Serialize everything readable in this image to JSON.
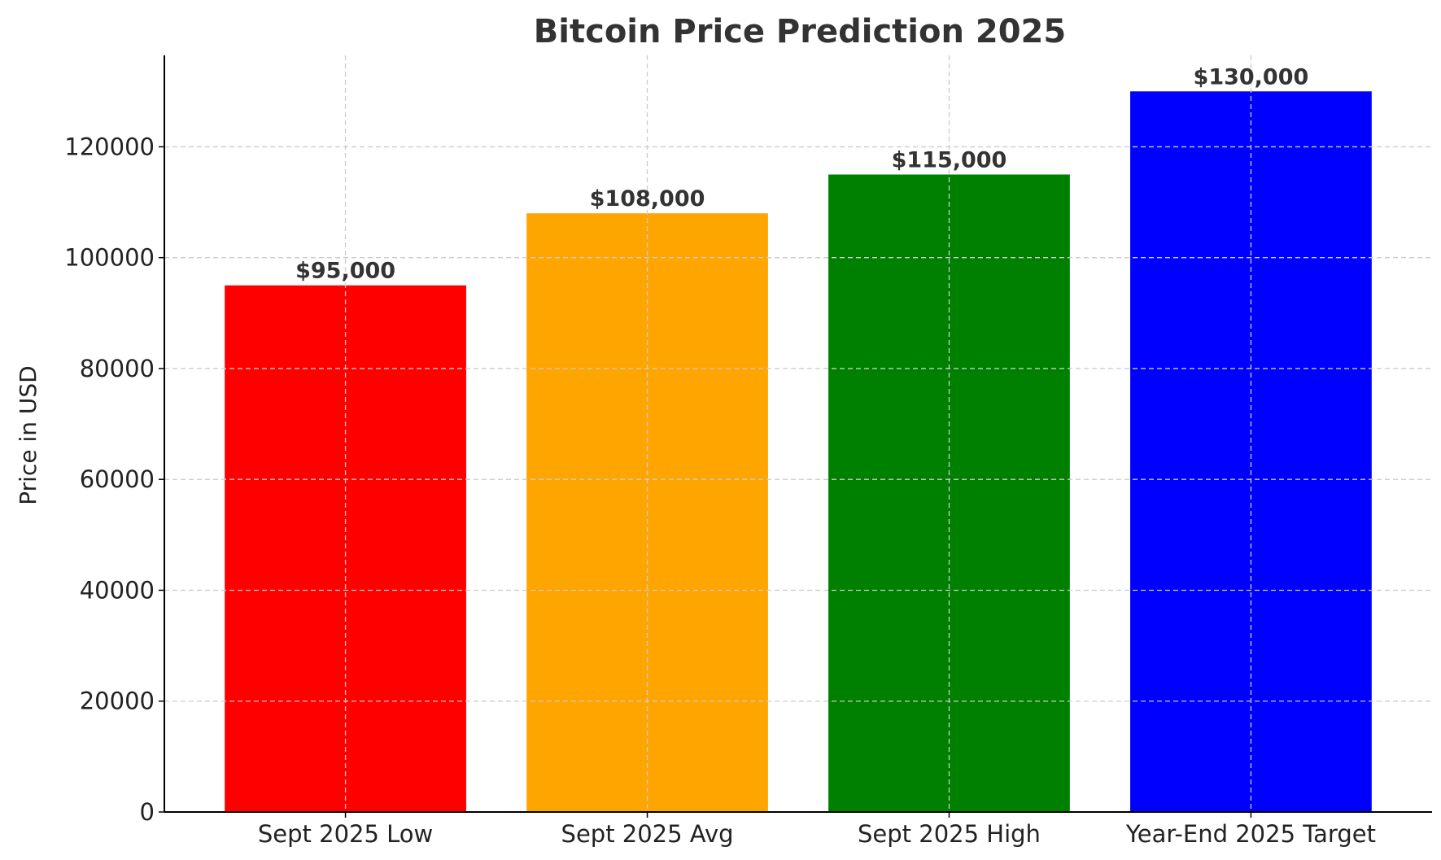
{
  "chart_data": {
    "type": "bar",
    "title": "Bitcoin Price Prediction 2025",
    "xlabel": "",
    "ylabel": "Price in USD",
    "categories": [
      "Sept 2025 Low",
      "Sept 2025 Avg",
      "Sept 2025 High",
      "Year-End 2025 Target"
    ],
    "values": [
      95000,
      108000,
      115000,
      130000
    ],
    "data_labels": [
      "$95,000",
      "$108,000",
      "$115,000",
      "$130,000"
    ],
    "colors": [
      "#ff0000",
      "#ffa500",
      "#008000",
      "#0000ff"
    ],
    "ylim": [
      0,
      136500
    ],
    "yticks": [
      0,
      20000,
      40000,
      60000,
      80000,
      100000,
      120000
    ],
    "grid": true,
    "legend": "none"
  }
}
